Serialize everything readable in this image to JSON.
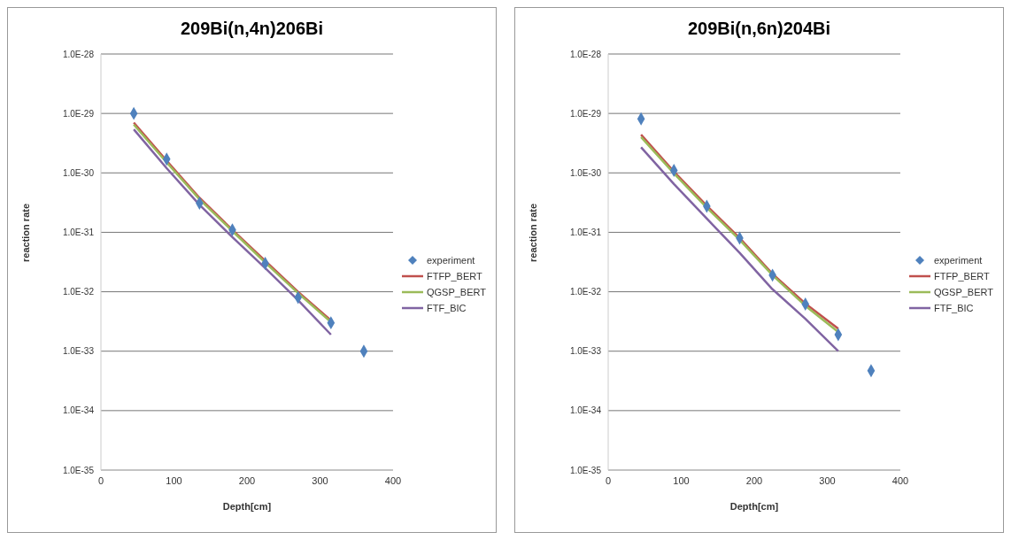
{
  "chart_data": [
    {
      "type": "line",
      "title": "209Bi(n,4n)206Bi",
      "xlabel": "Depth[cm]",
      "ylabel": "reaction rate",
      "log": "y",
      "grid": "y",
      "legend": "right",
      "xlim": [
        0,
        400
      ],
      "xticks": [
        0,
        100,
        200,
        300,
        400
      ],
      "ylim": [
        1e-35,
        1e-28
      ],
      "yticks": [
        {
          "value": 1e-35,
          "label": "1.0E-35"
        },
        {
          "value": 1e-34,
          "label": "1.0E-34"
        },
        {
          "value": 1e-33,
          "label": "1.0E-33"
        },
        {
          "value": 1e-32,
          "label": "1.0E-32"
        },
        {
          "value": 1e-31,
          "label": "1.0E-31"
        },
        {
          "value": 1e-30,
          "label": "1.0E-30"
        },
        {
          "value": 1e-29,
          "label": "1.0E-29"
        },
        {
          "value": 1e-28,
          "label": "1.0E-28"
        }
      ],
      "series": [
        {
          "name": "experiment",
          "type": "scatter",
          "marker": "diamond",
          "color": "#4f81bd",
          "x": [
            45,
            90,
            135,
            180,
            225,
            270,
            315,
            360
          ],
          "values": [
            1e-29,
            1.7e-30,
            3.1e-31,
            1.1e-31,
            3e-32,
            8e-33,
            3e-33,
            1e-33
          ]
        },
        {
          "name": "FTFP_BERT",
          "color": "#c0504d",
          "x": [
            45,
            90,
            135,
            180,
            225,
            270,
            315
          ],
          "values": [
            7e-30,
            1.6e-30,
            3.8e-31,
            1.1e-31,
            3.3e-32,
            1e-32,
            3.3e-33
          ]
        },
        {
          "name": "QGSP_BERT",
          "color": "#9bbb59",
          "x": [
            45,
            90,
            135,
            180,
            225,
            270,
            315
          ],
          "values": [
            6.5e-30,
            1.5e-30,
            3.6e-31,
            1.05e-31,
            3.1e-32,
            9.5e-33,
            3.1e-33
          ]
        },
        {
          "name": "FTF_BIC",
          "color": "#8064a2",
          "x": [
            45,
            90,
            135,
            180,
            225,
            270,
            315
          ],
          "values": [
            5.4e-30,
            1.2e-30,
            2.9e-31,
            8.3e-32,
            2.5e-32,
            7.2e-33,
            1.9e-33
          ]
        }
      ]
    },
    {
      "type": "line",
      "title": "209Bi(n,6n)204Bi",
      "xlabel": "Depth[cm]",
      "ylabel": "reaction rate",
      "log": "y",
      "grid": "y",
      "legend": "right",
      "xlim": [
        0,
        400
      ],
      "xticks": [
        0,
        100,
        200,
        300,
        400
      ],
      "ylim": [
        1e-35,
        1e-28
      ],
      "yticks": [
        {
          "value": 1e-35,
          "label": "1.0E-35"
        },
        {
          "value": 1e-34,
          "label": "1.0E-34"
        },
        {
          "value": 1e-33,
          "label": "1.0E-33"
        },
        {
          "value": 1e-32,
          "label": "1.0E-32"
        },
        {
          "value": 1e-31,
          "label": "1.0E-31"
        },
        {
          "value": 1e-30,
          "label": "1.0E-30"
        },
        {
          "value": 1e-29,
          "label": "1.0E-29"
        },
        {
          "value": 1e-28,
          "label": "1.0E-28"
        }
      ],
      "series": [
        {
          "name": "experiment",
          "type": "scatter",
          "marker": "diamond",
          "color": "#4f81bd",
          "x": [
            45,
            90,
            135,
            180,
            225,
            270,
            315,
            360
          ],
          "values": [
            8.1e-30,
            1.1e-30,
            2.75e-31,
            8e-32,
            1.9e-32,
            6.2e-33,
            1.9e-33,
            4.7e-34
          ]
        },
        {
          "name": "FTFP_BERT",
          "color": "#c0504d",
          "x": [
            45,
            90,
            135,
            180,
            225,
            270,
            315
          ],
          "values": [
            4.4e-30,
            1.05e-30,
            2.8e-31,
            8e-32,
            2e-32,
            6.3e-33,
            2.4e-33
          ]
        },
        {
          "name": "QGSP_BERT",
          "color": "#9bbb59",
          "x": [
            45,
            90,
            135,
            180,
            225,
            270,
            315
          ],
          "values": [
            4e-30,
            9.8e-31,
            2.6e-31,
            7.5e-32,
            1.9e-32,
            5.8e-33,
            2.1e-33
          ]
        },
        {
          "name": "FTF_BIC",
          "color": "#8064a2",
          "x": [
            45,
            90,
            135,
            180,
            225,
            270,
            315
          ],
          "values": [
            2.7e-30,
            6.5e-31,
            1.7e-31,
            4.5e-32,
            1.1e-32,
            3.5e-33,
            1e-33
          ]
        }
      ]
    }
  ]
}
